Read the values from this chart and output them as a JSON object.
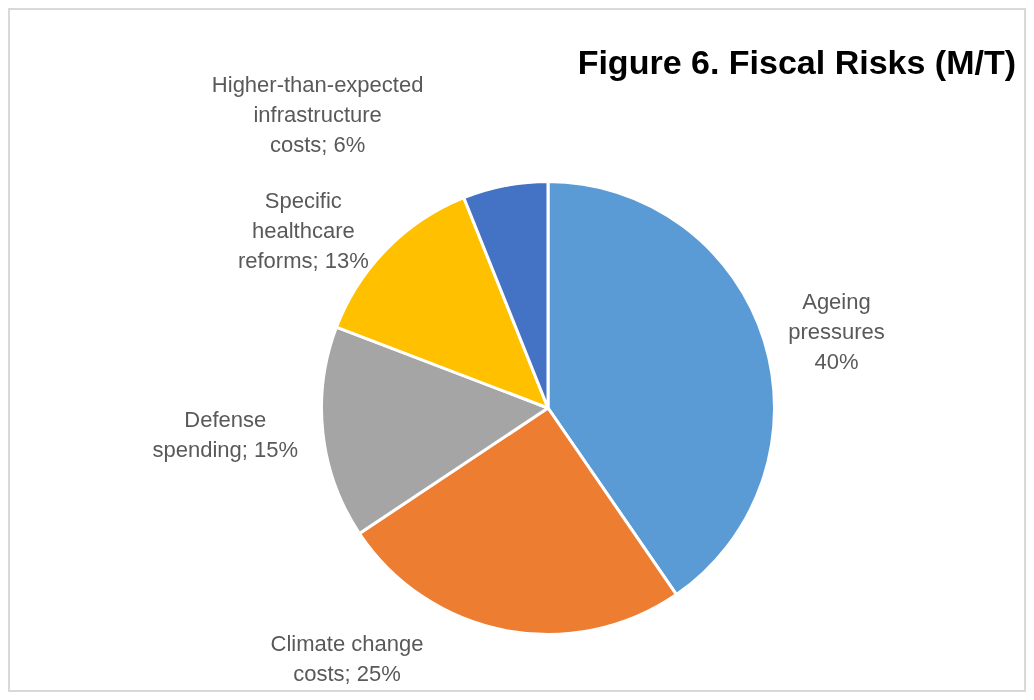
{
  "chart_data": {
    "type": "pie",
    "title": "Figure 6. Fiscal Risks (M/T)",
    "categories": [
      "Ageing pressures",
      "Climate change costs",
      "Defense spending",
      "Specific healthcare reforms",
      "Higher-than-expected infrastructure costs"
    ],
    "values": [
      40,
      25,
      15,
      13,
      6
    ],
    "colors": [
      "#5b9bd5",
      "#ed7d31",
      "#a5a5a5",
      "#ffc000",
      "#4472c4"
    ],
    "value_labels": [
      "40%",
      "25%",
      "15%",
      "13%",
      "6%"
    ],
    "legend": false
  }
}
